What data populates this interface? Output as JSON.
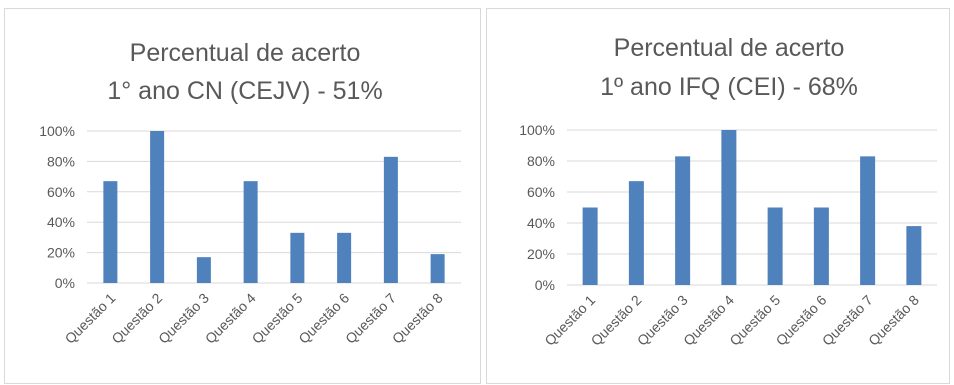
{
  "chart_data": [
    {
      "type": "bar",
      "title_lines": [
        "Percentual de acerto",
        "1° ano CN (CEJV) - 51%"
      ],
      "categories": [
        "Questão 1",
        "Questão 2",
        "Questão 3",
        "Questão 4",
        "Questão 5",
        "Questão 6",
        "Questão 7",
        "Questão 8"
      ],
      "values": [
        67,
        100,
        17,
        67,
        33,
        33,
        83,
        19
      ],
      "value_unit": "%",
      "ylim": [
        0,
        100
      ],
      "yticks": [
        "0%",
        "20%",
        "40%",
        "60%",
        "80%",
        "100%"
      ],
      "grid": true,
      "legend": "none",
      "bar_color": "#4f81bd",
      "grid_color": "#d9d9d9"
    },
    {
      "type": "bar",
      "title_lines": [
        "Percentual de acerto",
        "1º ano IFQ (CEI) - 68%"
      ],
      "categories": [
        "Questão 1",
        "Questão 2",
        "Questão 3",
        "Questão 4",
        "Questão 5",
        "Questão 6",
        "Questão 7",
        "Questão 8"
      ],
      "values": [
        50,
        67,
        83,
        100,
        50,
        50,
        83,
        38
      ],
      "value_unit": "%",
      "ylim": [
        0,
        100
      ],
      "yticks": [
        "0%",
        "20%",
        "40%",
        "60%",
        "80%",
        "100%"
      ],
      "grid": true,
      "legend": "none",
      "bar_color": "#4f81bd",
      "grid_color": "#d9d9d9"
    }
  ]
}
